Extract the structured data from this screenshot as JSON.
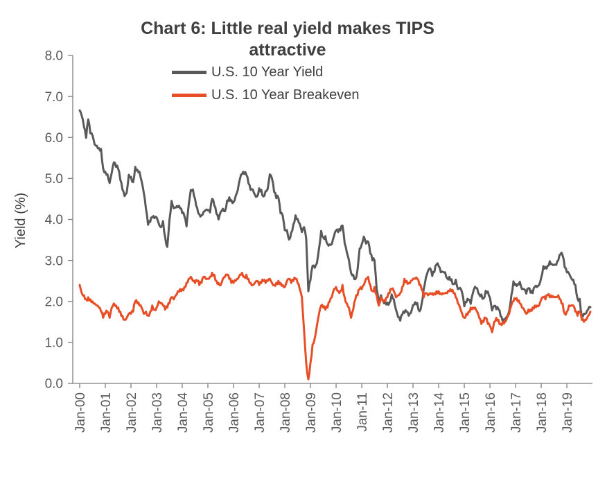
{
  "chart_data": {
    "type": "line",
    "title": "Chart 6: Little real yield makes TIPS attractive",
    "ylabel": "Yield (%)",
    "ylim": [
      0,
      8
    ],
    "y_tick_step": 1,
    "y_ticklabels": [
      "0.0",
      "1.0",
      "2.0",
      "3.0",
      "4.0",
      "5.0",
      "6.0",
      "7.0",
      "8.0"
    ],
    "x_ticklabels": [
      "Jan-00",
      "Jan-01",
      "Jan-02",
      "Jan-03",
      "Jan-04",
      "Jan-05",
      "Jan-06",
      "Jan-07",
      "Jan-08",
      "Jan-09",
      "Jan-10",
      "Jan-11",
      "Jan-12",
      "Jan-13",
      "Jan-14",
      "Jan-15",
      "Jan-16",
      "Jan-17",
      "Jan-18",
      "Jan-19"
    ],
    "x_frequency": "monthly",
    "x_range": [
      "Jan-00",
      "Dec-19"
    ],
    "grid": false,
    "legend_position": "top",
    "series": [
      {
        "name": "U.S. 10 Year Yield",
        "color": "#595959",
        "values": [
          6.66,
          6.52,
          6.26,
          5.99,
          6.44,
          6.1,
          6.05,
          5.83,
          5.8,
          5.74,
          5.72,
          5.24,
          5.16,
          5.1,
          4.89,
          5.14,
          5.39,
          5.28,
          5.24,
          4.97,
          4.73,
          4.57,
          4.65,
          5.09,
          5.04,
          4.91,
          5.28,
          5.21,
          5.16,
          4.93,
          4.65,
          4.26,
          3.87,
          3.94,
          4.05,
          4.03,
          4.05,
          3.9,
          3.81,
          3.96,
          3.57,
          3.33,
          3.98,
          4.45,
          4.27,
          4.29,
          4.3,
          4.27,
          4.15,
          4.08,
          3.83,
          4.35,
          4.72,
          4.73,
          4.5,
          4.28,
          4.13,
          4.1,
          4.19,
          4.23,
          4.22,
          4.17,
          4.5,
          4.34,
          4.14,
          4.0,
          4.18,
          4.26,
          4.2,
          4.46,
          4.54,
          4.47,
          4.42,
          4.57,
          4.72,
          4.99,
          5.11,
          5.11,
          5.09,
          4.88,
          4.72,
          4.73,
          4.6,
          4.56,
          4.76,
          4.72,
          4.56,
          4.69,
          4.75,
          5.1,
          5.0,
          4.67,
          4.52,
          4.53,
          4.15,
          4.1,
          3.74,
          3.74,
          3.51,
          3.68,
          3.88,
          4.1,
          4.01,
          3.89,
          3.69,
          3.81,
          3.53,
          2.25,
          2.52,
          2.87,
          2.82,
          2.93,
          3.29,
          3.72,
          3.56,
          3.59,
          3.4,
          3.39,
          3.4,
          3.59,
          3.73,
          3.69,
          3.73,
          3.85,
          3.42,
          3.2,
          3.01,
          2.7,
          2.65,
          2.54,
          2.76,
          3.29,
          3.39,
          3.58,
          3.41,
          3.46,
          3.17,
          3.0,
          3.0,
          2.3,
          1.98,
          2.15,
          2.01,
          1.98,
          1.97,
          1.97,
          2.17,
          2.05,
          1.8,
          1.62,
          1.53,
          1.68,
          1.72,
          1.75,
          1.65,
          1.72,
          1.91,
          1.98,
          1.96,
          1.76,
          1.93,
          2.3,
          2.58,
          2.74,
          2.81,
          2.62,
          2.72,
          2.9,
          2.86,
          2.71,
          2.72,
          2.71,
          2.56,
          2.6,
          2.54,
          2.42,
          2.53,
          2.3,
          2.33,
          2.21,
          1.88,
          1.98,
          2.04,
          1.94,
          2.2,
          2.36,
          2.32,
          2.17,
          2.17,
          2.07,
          2.26,
          2.24,
          2.09,
          1.78,
          1.89,
          1.81,
          1.81,
          1.64,
          1.5,
          1.56,
          1.63,
          1.76,
          2.14,
          2.49,
          2.43,
          2.42,
          2.48,
          2.3,
          2.3,
          2.19,
          2.32,
          2.21,
          2.2,
          2.36,
          2.35,
          2.4,
          2.58,
          2.86,
          2.84,
          2.87,
          2.98,
          2.91,
          2.89,
          2.89,
          3.0,
          3.15,
          3.12,
          2.83,
          2.71,
          2.68,
          2.57,
          2.53,
          2.4,
          2.07,
          2.06,
          1.63,
          1.7,
          1.71,
          1.81,
          1.86
        ]
      },
      {
        "name": "U.S. 10 Year Breakeven",
        "color": "#E74E26",
        "values": [
          2.4,
          2.2,
          2.15,
          2.05,
          2.1,
          2.05,
          2.0,
          1.95,
          1.9,
          1.85,
          1.75,
          1.6,
          1.7,
          1.75,
          1.6,
          1.85,
          1.95,
          1.9,
          1.85,
          1.75,
          1.65,
          1.55,
          1.6,
          1.7,
          1.7,
          1.75,
          2.0,
          1.95,
          1.9,
          1.85,
          1.7,
          1.75,
          1.65,
          1.75,
          1.9,
          1.8,
          1.85,
          2.0,
          1.95,
          1.9,
          1.8,
          1.85,
          1.95,
          2.1,
          2.05,
          2.15,
          2.25,
          2.3,
          2.3,
          2.35,
          2.45,
          2.55,
          2.6,
          2.5,
          2.45,
          2.5,
          2.4,
          2.45,
          2.6,
          2.55,
          2.55,
          2.6,
          2.7,
          2.65,
          2.5,
          2.45,
          2.4,
          2.55,
          2.6,
          2.65,
          2.55,
          2.45,
          2.45,
          2.5,
          2.55,
          2.65,
          2.7,
          2.6,
          2.65,
          2.55,
          2.45,
          2.4,
          2.45,
          2.5,
          2.4,
          2.45,
          2.5,
          2.45,
          2.5,
          2.55,
          2.45,
          2.4,
          2.45,
          2.5,
          2.45,
          2.4,
          2.35,
          2.5,
          2.55,
          2.45,
          2.5,
          2.55,
          2.45,
          2.3,
          2.1,
          1.3,
          0.5,
          0.1,
          0.5,
          0.95,
          1.1,
          1.4,
          1.7,
          1.9,
          1.85,
          1.8,
          1.85,
          2.0,
          2.1,
          2.3,
          2.35,
          2.25,
          2.25,
          2.4,
          2.1,
          1.95,
          1.85,
          1.6,
          1.8,
          2.05,
          2.15,
          2.3,
          2.3,
          2.4,
          2.55,
          2.6,
          2.4,
          2.25,
          2.35,
          2.15,
          1.9,
          2.1,
          2.0,
          2.0,
          2.1,
          2.2,
          2.3,
          2.25,
          2.1,
          2.15,
          2.2,
          2.35,
          2.55,
          2.5,
          2.45,
          2.5,
          2.55,
          2.55,
          2.55,
          2.4,
          2.3,
          2.1,
          2.2,
          2.15,
          2.2,
          2.2,
          2.2,
          2.25,
          2.25,
          2.2,
          2.2,
          2.2,
          2.2,
          2.25,
          2.25,
          2.2,
          2.1,
          1.95,
          1.85,
          1.7,
          1.6,
          1.7,
          1.75,
          1.85,
          1.85,
          1.85,
          1.75,
          1.6,
          1.45,
          1.5,
          1.6,
          1.45,
          1.4,
          1.25,
          1.5,
          1.6,
          1.55,
          1.45,
          1.5,
          1.5,
          1.6,
          1.7,
          1.9,
          2.0,
          2.05,
          2.0,
          1.95,
          1.85,
          1.8,
          1.7,
          1.8,
          1.8,
          1.85,
          1.9,
          1.9,
          1.9,
          2.05,
          2.1,
          2.05,
          2.15,
          2.1,
          2.1,
          2.1,
          2.1,
          2.15,
          2.05,
          1.95,
          1.7,
          1.75,
          1.9,
          1.9,
          1.9,
          1.75,
          1.65,
          1.75,
          1.55,
          1.5,
          1.55,
          1.65,
          1.75
        ]
      }
    ]
  }
}
